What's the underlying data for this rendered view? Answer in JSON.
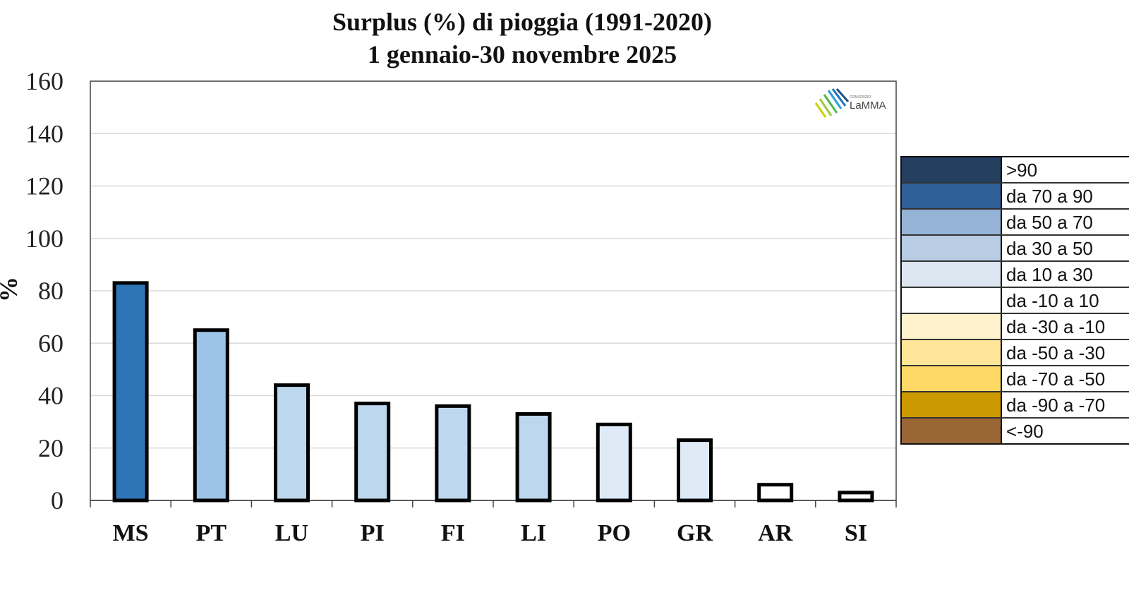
{
  "chart_data": {
    "type": "bar",
    "title": [
      "Surplus (%) di pioggia (1991-2020)",
      "1 gennaio-30 novembre 2025"
    ],
    "xlabel": "",
    "ylabel": "%",
    "ylim": [
      0,
      160
    ],
    "yticks": [
      0,
      20,
      40,
      60,
      80,
      100,
      120,
      140,
      160
    ],
    "grid": true,
    "categories": [
      "MS",
      "PT",
      "LU",
      "PI",
      "FI",
      "LI",
      "PO",
      "GR",
      "AR",
      "SI"
    ],
    "values": [
      83,
      65,
      44,
      37,
      36,
      33,
      29,
      23,
      6,
      3
    ],
    "legend_placement": "right",
    "legend": [
      {
        "label": ">90",
        "color": "#243f60",
        "min": 90,
        "max": 1000
      },
      {
        "label": "da 70 a 90",
        "color": "#2f5f97",
        "min": 70,
        "max": 90
      },
      {
        "label": "da 50 a 70",
        "color": "#95b3d7",
        "min": 50,
        "max": 70
      },
      {
        "label": "da 30 a 50",
        "color": "#b8cce4",
        "min": 30,
        "max": 50
      },
      {
        "label": "da 10 a 30",
        "color": "#dce6f1",
        "min": 10,
        "max": 30
      },
      {
        "label": "da -10 a 10",
        "color": "#ffffff",
        "min": -10,
        "max": 10
      },
      {
        "label": "da -30 a -10",
        "color": "#fff2cc",
        "min": -30,
        "max": -10
      },
      {
        "label": "da -50 a -30",
        "color": "#ffe699",
        "min": -50,
        "max": -30
      },
      {
        "label": "da -70 a -50",
        "color": "#ffd966",
        "min": -70,
        "max": -50
      },
      {
        "label": "da -90 a -70",
        "color": "#cc9900",
        "min": -90,
        "max": -70
      },
      {
        "label": "<-90",
        "color": "#996633",
        "min": -1000,
        "max": -90
      }
    ],
    "bar_colors": [
      "#2e75b6",
      "#9dc3e6",
      "#bdd7ee",
      "#bdd7ee",
      "#bdd7ee",
      "#bdd7ee",
      "#deebf7",
      "#deebf7",
      "#ffffff",
      "#ffffff"
    ]
  },
  "logo": {
    "small": "CONSORZIO",
    "big": "LaMMA"
  }
}
